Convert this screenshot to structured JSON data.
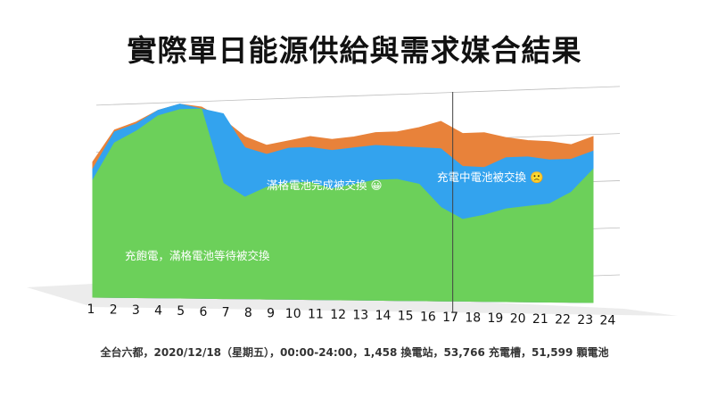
{
  "chart_data": {
    "type": "area",
    "title": "實際單日能源供給與需求媒合結果",
    "subtitle": "全台六都，2020/12/18（星期五），00:00-24:00，1,458 換電站，53,766 充電槽，51,599 顆電池",
    "categories": [
      "1",
      "2",
      "3",
      "4",
      "5",
      "6",
      "7",
      "8",
      "9",
      "10",
      "11",
      "12",
      "13",
      "14",
      "15",
      "16",
      "17",
      "18",
      "19",
      "20",
      "21",
      "22",
      "23",
      "24"
    ],
    "series": [
      {
        "color": "#6cd05a",
        "values": [
          63,
          83,
          89,
          97,
          100,
          100,
          59,
          51,
          56,
          58,
          58,
          54,
          56,
          58,
          58,
          55,
          42,
          35,
          37,
          40,
          41,
          42,
          48,
          60
        ]
      },
      {
        "color": "#33a3ee",
        "values": [
          69,
          89,
          93,
          100,
          103,
          100,
          97,
          78,
          74,
          77,
          77,
          75,
          76,
          77,
          76,
          75,
          74,
          64,
          63,
          68,
          68,
          66,
          66,
          70
        ]
      },
      {
        "color": "#e8823a",
        "values": [
          73,
          90,
          94,
          100,
          103,
          101,
          94,
          84,
          79,
          81,
          83,
          81,
          82,
          84,
          84,
          86,
          89,
          82,
          82,
          79,
          77,
          76,
          74,
          78
        ]
      }
    ],
    "annotations": [
      {
        "text": "充飽電，滿格電池等待被交換"
      },
      {
        "text": "滿格電池完成被交換 😀"
      },
      {
        "text": "充電中電池被交換 🙁"
      }
    ],
    "ylim": [
      0,
      103
    ],
    "grid": true,
    "marker_category": "18",
    "legend": "none"
  }
}
